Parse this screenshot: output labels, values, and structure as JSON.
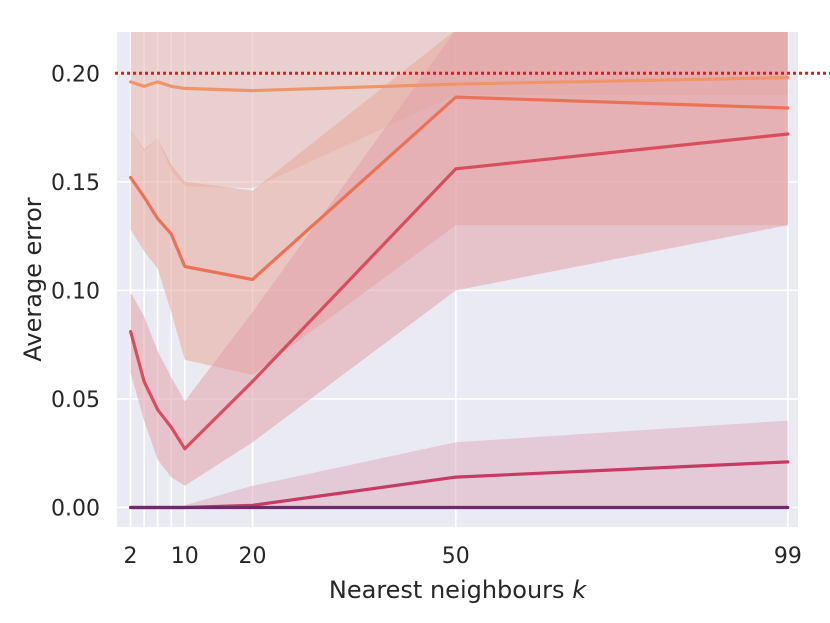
{
  "chart_data": {
    "type": "line",
    "xlabel": "Nearest neighbours",
    "xlabel_var": "k",
    "ylabel": "Average error",
    "xlim": [
      0,
      100.5
    ],
    "ylim": [
      -0.009,
      0.219
    ],
    "x_ticks": [
      2,
      10,
      20,
      50,
      99
    ],
    "x_tick_labels": [
      "2",
      "10",
      "20",
      "50",
      "99"
    ],
    "x_minor_gridlines": [
      4,
      6,
      8
    ],
    "y_ticks": [
      0.0,
      0.05,
      0.1,
      0.15,
      0.2
    ],
    "y_tick_labels": [
      "0.00",
      "0.05",
      "0.10",
      "0.15",
      "0.20"
    ],
    "grid": true,
    "background": "#eaeaf2",
    "reference_line": {
      "y": 0.2,
      "style": "dotted",
      "color": "#e31a1c"
    },
    "x": [
      2,
      4,
      6,
      8,
      10,
      20,
      50,
      99
    ],
    "series": [
      {
        "color": "#f0946a",
        "band_color": "#e8b9b0",
        "values": [
          0.196,
          0.194,
          0.196,
          0.194,
          0.193,
          0.192,
          0.195,
          0.198
        ],
        "lower": [
          0.174,
          0.164,
          0.17,
          0.155,
          0.148,
          0.147,
          0.19,
          0.19
        ],
        "upper": [
          0.22,
          0.22,
          0.22,
          0.22,
          0.22,
          0.22,
          0.22,
          0.22
        ]
      },
      {
        "color": "#ea7357",
        "band_color": "#e8a79a",
        "values": [
          0.152,
          0.143,
          0.133,
          0.126,
          0.111,
          0.105,
          0.189,
          0.184
        ],
        "lower": [
          0.128,
          0.118,
          0.11,
          0.09,
          0.068,
          0.061,
          0.13,
          0.13
        ],
        "upper": [
          0.174,
          0.165,
          0.17,
          0.158,
          0.15,
          0.146,
          0.22,
          0.22
        ]
      },
      {
        "color": "#d94e5e",
        "band_color": "#e1a1ac",
        "values": [
          0.081,
          0.058,
          0.045,
          0.037,
          0.027,
          0.058,
          0.156,
          0.172
        ],
        "lower": [
          0.062,
          0.04,
          0.022,
          0.014,
          0.01,
          0.03,
          0.1,
          0.13
        ],
        "upper": [
          0.099,
          0.088,
          0.072,
          0.06,
          0.049,
          0.09,
          0.22,
          0.22
        ]
      },
      {
        "color": "#c63a64",
        "band_color": "#dcaec0",
        "values": [
          0.0,
          0.0,
          0.0,
          0.0,
          0.0,
          0.001,
          0.014,
          0.021
        ],
        "lower": [
          0.0,
          0.0,
          0.0,
          0.0,
          0.0,
          0.0,
          0.0,
          0.0
        ],
        "upper": [
          0.0,
          0.0,
          0.0,
          0.0,
          0.001,
          0.01,
          0.03,
          0.04
        ]
      },
      {
        "color": "#6d2a6e",
        "band_color": "#c9a0c4",
        "values": [
          0.0,
          0.0,
          0.0,
          0.0,
          0.0,
          0.0,
          0.0,
          0.0
        ],
        "lower": [
          0.0,
          0.0,
          0.0,
          0.0,
          0.0,
          0.0,
          0.0,
          0.0
        ],
        "upper": [
          0.0,
          0.0,
          0.0,
          0.0,
          0.0,
          0.0,
          0.0,
          0.0
        ]
      }
    ]
  }
}
